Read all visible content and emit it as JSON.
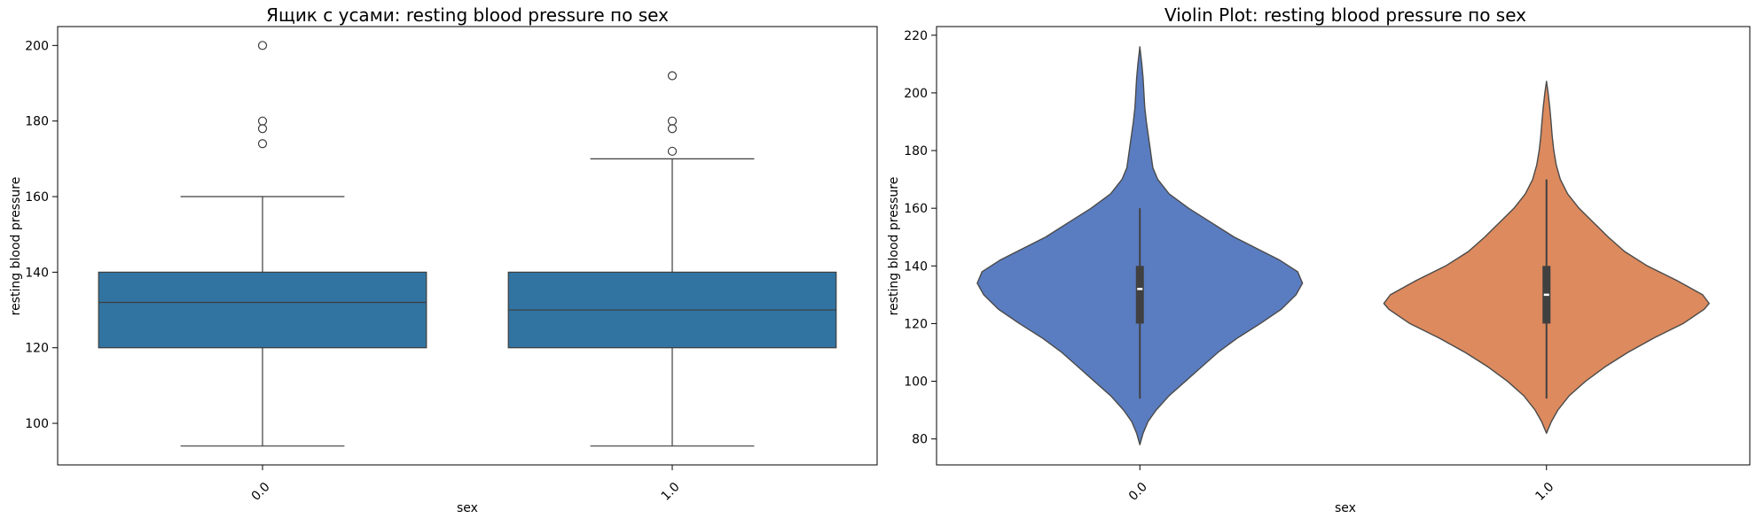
{
  "chart_data": [
    {
      "type": "box",
      "title": "Ящик с усами: resting blood pressure по sex",
      "xlabel": "sex",
      "ylabel": "resting blood pressure",
      "categories": [
        "0.0",
        "1.0"
      ],
      "ylim": [
        89,
        205
      ],
      "yticks": [
        100,
        120,
        140,
        160,
        180,
        200
      ],
      "box_color": "#3274a1",
      "boxes": [
        {
          "category": "0.0",
          "whisker_low": 94,
          "q1": 120,
          "median": 132,
          "q3": 140,
          "whisker_high": 160,
          "outliers": [
            174,
            178,
            180,
            200
          ]
        },
        {
          "category": "1.0",
          "whisker_low": 94,
          "q1": 120,
          "median": 130,
          "q3": 140,
          "whisker_high": 170,
          "outliers": [
            172,
            178,
            180,
            192
          ]
        }
      ]
    },
    {
      "type": "violin",
      "title": "Violin Plot: resting blood pressure по sex",
      "xlabel": "sex",
      "ylabel": "resting blood pressure",
      "categories": [
        "0.0",
        "1.0"
      ],
      "ylim": [
        71,
        223
      ],
      "yticks": [
        80,
        100,
        120,
        140,
        160,
        180,
        200,
        220
      ],
      "violins": [
        {
          "category": "0.0",
          "color": "#5a7dc1",
          "y_min": 78,
          "y_max": 216,
          "q1": 120,
          "median": 132,
          "q3": 140,
          "whisker_low": 94,
          "whisker_high": 160,
          "density": [
            [
              78,
              0.0
            ],
            [
              82,
              0.02
            ],
            [
              86,
              0.05
            ],
            [
              90,
              0.1
            ],
            [
              95,
              0.18
            ],
            [
              100,
              0.28
            ],
            [
              105,
              0.38
            ],
            [
              110,
              0.48
            ],
            [
              115,
              0.6
            ],
            [
              120,
              0.74
            ],
            [
              125,
              0.87
            ],
            [
              130,
              0.96
            ],
            [
              134,
              1.0
            ],
            [
              138,
              0.97
            ],
            [
              142,
              0.86
            ],
            [
              146,
              0.72
            ],
            [
              150,
              0.58
            ],
            [
              155,
              0.44
            ],
            [
              160,
              0.3
            ],
            [
              165,
              0.18
            ],
            [
              170,
              0.11
            ],
            [
              174,
              0.08
            ],
            [
              178,
              0.07
            ],
            [
              182,
              0.06
            ],
            [
              186,
              0.05
            ],
            [
              190,
              0.04
            ],
            [
              195,
              0.03
            ],
            [
              200,
              0.025
            ],
            [
              205,
              0.02
            ],
            [
              210,
              0.012
            ],
            [
              213,
              0.006
            ],
            [
              216,
              0.0
            ]
          ]
        },
        {
          "category": "1.0",
          "color": "#dc8a5e",
          "y_min": 82,
          "y_max": 204,
          "q1": 120,
          "median": 130,
          "q3": 140,
          "whisker_low": 94,
          "whisker_high": 170,
          "density": [
            [
              82,
              0.0
            ],
            [
              86,
              0.03
            ],
            [
              90,
              0.07
            ],
            [
              95,
              0.14
            ],
            [
              100,
              0.24
            ],
            [
              105,
              0.36
            ],
            [
              110,
              0.5
            ],
            [
              115,
              0.66
            ],
            [
              120,
              0.84
            ],
            [
              125,
              0.97
            ],
            [
              127,
              1.0
            ],
            [
              130,
              0.96
            ],
            [
              135,
              0.8
            ],
            [
              140,
              0.62
            ],
            [
              145,
              0.48
            ],
            [
              150,
              0.38
            ],
            [
              155,
              0.29
            ],
            [
              160,
              0.2
            ],
            [
              165,
              0.13
            ],
            [
              170,
              0.085
            ],
            [
              175,
              0.06
            ],
            [
              180,
              0.045
            ],
            [
              185,
              0.035
            ],
            [
              190,
              0.028
            ],
            [
              195,
              0.02
            ],
            [
              200,
              0.01
            ],
            [
              204,
              0.0
            ]
          ]
        }
      ]
    }
  ]
}
